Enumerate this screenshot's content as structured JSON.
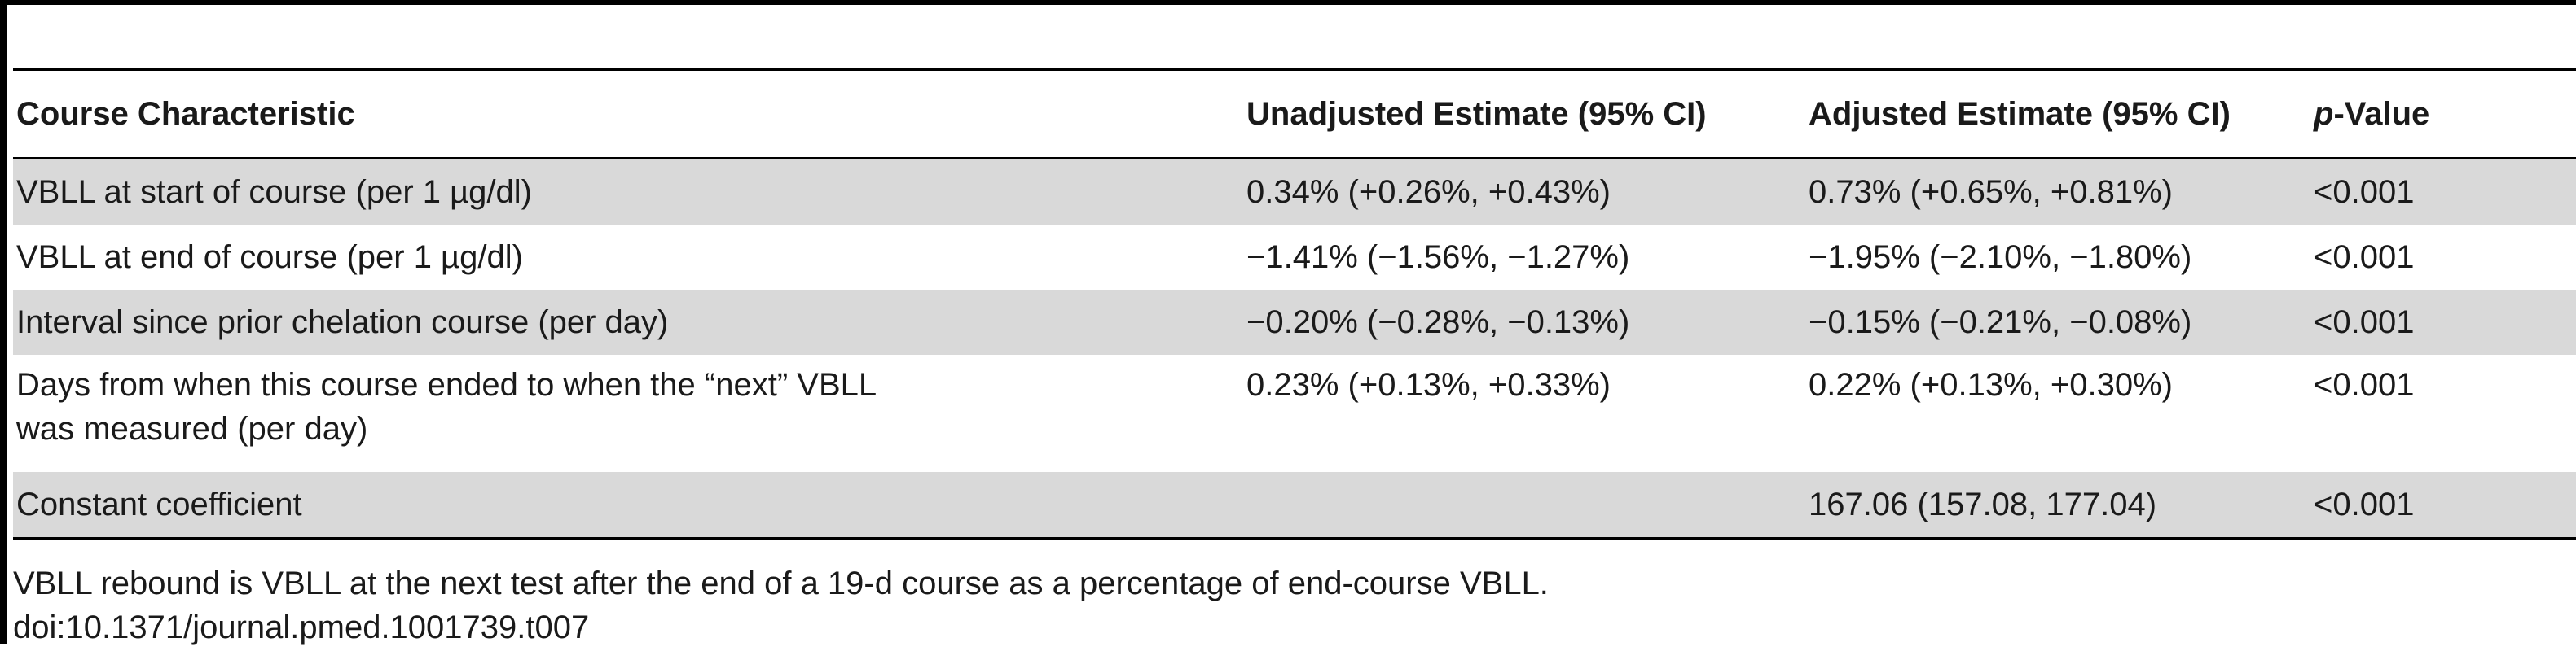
{
  "table": {
    "headers": {
      "characteristic": "Course Characteristic",
      "unadjusted": "Unadjusted Estimate (95% CI)",
      "adjusted": "Adjusted Estimate (95% CI)",
      "p_italic": "p",
      "p_rest": "-Value"
    },
    "rows": [
      {
        "characteristic": "VBLL at start of course (per 1 µg/dl)",
        "unadjusted": "0.34% (+0.26%, +0.43%)",
        "adjusted": "0.73% (+0.65%, +0.81%)",
        "p": "<0.001"
      },
      {
        "characteristic": "VBLL at end of course (per 1 µg/dl)",
        "unadjusted": "−1.41% (−1.56%, −1.27%)",
        "adjusted": "−1.95% (−2.10%, −1.80%)",
        "p": "<0.001"
      },
      {
        "characteristic": "Interval since prior chelation course (per day)",
        "unadjusted": "−0.20% (−0.28%, −0.13%)",
        "adjusted": "−0.15% (−0.21%, −0.08%)",
        "p": "<0.001"
      },
      {
        "characteristic_line1": "Days from when this course ended to when the “next” VBLL",
        "characteristic_line2": "was measured (per day)",
        "unadjusted": "0.23% (+0.13%, +0.33%)",
        "adjusted": "0.22% (+0.13%, +0.30%)",
        "p": "<0.001"
      },
      {
        "characteristic": "Constant coefficient",
        "unadjusted": "",
        "adjusted": "167.06 (157.08, 177.04)",
        "p": "<0.001"
      }
    ]
  },
  "footnote": {
    "note": "VBLL rebound is VBLL at the next test after the end of a 19-d course as a percentage of end-course VBLL.",
    "doi": "doi:10.1371/journal.pmed.1001739.t007"
  }
}
